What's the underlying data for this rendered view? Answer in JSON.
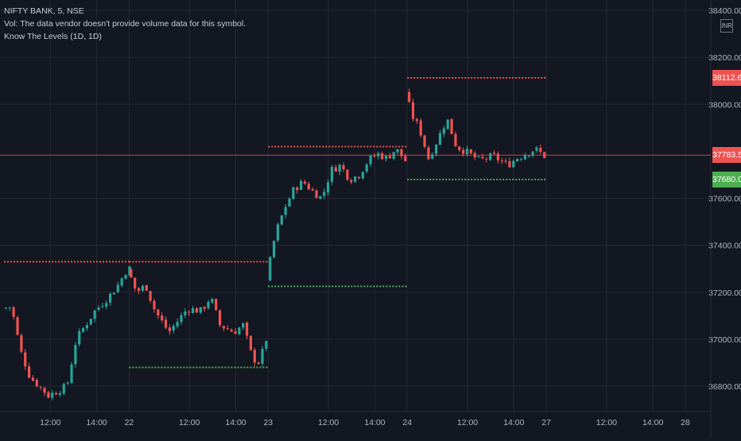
{
  "legend": {
    "symbol": "NIFTY BANK, 5, NSE",
    "volume_note": "Vol: The data vendor doesn't provide volume data for this symbol.",
    "indicator": "Know The Levels (1D, 1D)"
  },
  "currency_badge": "INR",
  "colors": {
    "background": "#131722",
    "grid": "#242833",
    "up": "#26a69a",
    "down": "#ef5350",
    "resistance": "#ef5350",
    "support": "#4caf50",
    "axis_text": "#b2b5be",
    "last_price_tag": "#ef5350",
    "support_tag": "#4caf50"
  },
  "chart_data": {
    "type": "candlestick",
    "y_axis": {
      "side": "right",
      "min": 36700,
      "max": 38400,
      "ticks": [
        "38400.00",
        "38200.00",
        "38000.00",
        "37600.00",
        "37400.00",
        "37200.00",
        "37000.00",
        "36800.00"
      ],
      "tick_values": [
        38400,
        38200,
        38000,
        37600,
        37400,
        37200,
        37000,
        36800
      ]
    },
    "x_axis": {
      "ticks": [
        "12:00",
        "14:00",
        "22",
        "12:00",
        "14:00",
        "23",
        "12:00",
        "14:00",
        "24",
        "12:00",
        "14:00",
        "27",
        "12:00",
        "14:00",
        "28"
      ],
      "tick_positions": [
        1.0,
        2.0,
        2.7,
        4.0,
        5.0,
        5.7,
        7.0,
        8.0,
        8.7,
        10.0,
        11.0,
        11.7,
        13.0,
        14.0,
        14.7
      ]
    },
    "sessions": [
      {
        "start": 0.0,
        "end": 2.7,
        "path": [
          [
            0,
            37130
          ],
          [
            0.2,
            37140
          ],
          [
            0.4,
            36950
          ],
          [
            0.6,
            36840
          ],
          [
            0.8,
            36800
          ],
          [
            1.0,
            36760
          ],
          [
            1.2,
            36780
          ],
          [
            1.4,
            36800
          ],
          [
            1.6,
            37000
          ],
          [
            2.0,
            37120
          ],
          [
            2.3,
            37180
          ],
          [
            2.5,
            37230
          ],
          [
            2.7,
            37300
          ]
        ]
      },
      {
        "start": 2.7,
        "end": 5.7,
        "path": [
          [
            2.7,
            37300
          ],
          [
            2.9,
            37200
          ],
          [
            3.1,
            37230
          ],
          [
            3.3,
            37120
          ],
          [
            3.6,
            37030
          ],
          [
            4.0,
            37130
          ],
          [
            4.3,
            37120
          ],
          [
            4.5,
            37180
          ],
          [
            4.7,
            37060
          ],
          [
            5.0,
            37030
          ],
          [
            5.2,
            37060
          ],
          [
            5.4,
            36920
          ],
          [
            5.55,
            36900
          ],
          [
            5.7,
            37000
          ]
        ]
      },
      {
        "start": 5.7,
        "end": 8.7,
        "path": [
          [
            5.7,
            37250
          ],
          [
            5.9,
            37450
          ],
          [
            6.1,
            37560
          ],
          [
            6.3,
            37640
          ],
          [
            6.5,
            37670
          ],
          [
            6.7,
            37630
          ],
          [
            6.9,
            37600
          ],
          [
            7.1,
            37720
          ],
          [
            7.3,
            37740
          ],
          [
            7.5,
            37680
          ],
          [
            7.7,
            37700
          ],
          [
            7.9,
            37760
          ],
          [
            8.1,
            37790
          ],
          [
            8.3,
            37770
          ],
          [
            8.5,
            37810
          ],
          [
            8.7,
            37760
          ]
        ]
      },
      {
        "start": 8.7,
        "end": 11.7,
        "path": [
          [
            8.7,
            38050
          ],
          [
            8.85,
            37950
          ],
          [
            9.0,
            37900
          ],
          [
            9.2,
            37770
          ],
          [
            9.4,
            37850
          ],
          [
            9.6,
            37940
          ],
          [
            9.8,
            37820
          ],
          [
            10.0,
            37800
          ],
          [
            10.3,
            37760
          ],
          [
            10.6,
            37780
          ],
          [
            10.9,
            37740
          ],
          [
            11.1,
            37770
          ],
          [
            11.3,
            37790
          ],
          [
            11.5,
            37810
          ],
          [
            11.7,
            37780
          ]
        ]
      }
    ],
    "levels": [
      {
        "kind": "resistance",
        "from": 0.0,
        "to": 2.7,
        "value": 37330
      },
      {
        "kind": "resistance",
        "from": 2.7,
        "to": 5.7,
        "value": 37330
      },
      {
        "kind": "resistance",
        "from": 5.7,
        "to": 8.7,
        "value": 37820
      },
      {
        "kind": "resistance",
        "from": 8.7,
        "to": 11.7,
        "value": 38112.6
      },
      {
        "kind": "support",
        "from": 2.7,
        "to": 5.7,
        "value": 36880
      },
      {
        "kind": "support",
        "from": 5.7,
        "to": 8.7,
        "value": 37225
      },
      {
        "kind": "support",
        "from": 8.7,
        "to": 11.7,
        "value": 37680
      }
    ],
    "price_tags": [
      {
        "label": "38112.60",
        "value": 38112.6,
        "color": "#ef5350"
      },
      {
        "label": "37783.50",
        "value": 37783.5,
        "color": "#ef5350"
      },
      {
        "label": "37680.00",
        "value": 37680,
        "color": "#4caf50"
      }
    ],
    "last_price": 37783.5
  }
}
